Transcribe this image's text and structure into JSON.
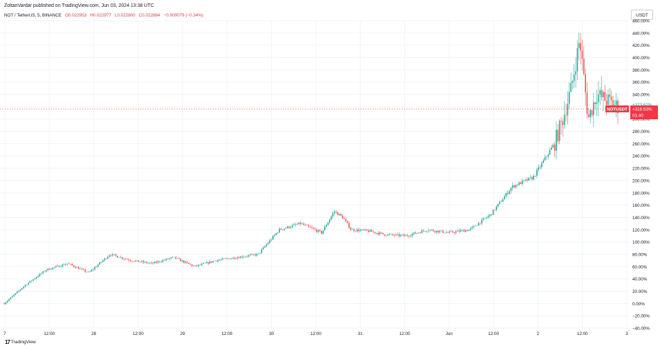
{
  "publisher_line": "ZoltanVardar published on TradingView.com, Jun 03, 2024 13:38 UTC",
  "legend": {
    "symbol": "NOT / TetherUS, 5, BINANCE",
    "open": "O0.022953",
    "high": "H0.022977",
    "low": "L0.022800",
    "close": "C0.022884",
    "change": "−0.000079 (−0.34%)"
  },
  "currency": "USDT",
  "footer": {
    "logo_glyph": "17",
    "logo_text": "TradingView"
  },
  "colors": {
    "up": "#26a69a",
    "down": "#ef5350",
    "price_line": "#ef5350",
    "price_badge": "#f23645",
    "marker_label": "#ffffff"
  },
  "chart_data": {
    "type": "line",
    "style": "candlestick",
    "y_axis_unit": "%",
    "ylim": [
      -40,
      460
    ],
    "y_ticks": [
      "460.00%",
      "440.00%",
      "420.00%",
      "400.00%",
      "380.00%",
      "360.00%",
      "340.00%",
      "320.00%",
      "300.00%",
      "280.00%",
      "260.00%",
      "240.00%",
      "220.00%",
      "200.00%",
      "180.00%",
      "160.00%",
      "140.00%",
      "120.00%",
      "100.00%",
      "80.00%",
      "60.00%",
      "40.00%",
      "20.00%",
      "0.00%",
      "−20.00%",
      "−40.00%"
    ],
    "x_ticks": [
      "7",
      "12:00",
      "28",
      "12:00",
      "29",
      "12:00",
      "30",
      "12:00",
      "31",
      "12:00",
      "Jun",
      "12:00",
      "2",
      "12:00",
      "3"
    ],
    "grid": true,
    "series": [
      {
        "x": [
          0,
          0.5,
          1,
          1.5,
          2,
          2.5,
          3,
          3.5,
          4,
          4.5,
          5,
          5.5,
          6,
          6.5,
          7,
          7.5,
          7.8,
          8,
          8.2,
          8.6,
          9,
          9.5,
          10,
          10.5,
          11,
          11.5,
          12,
          12.5,
          13,
          13.2,
          13.4,
          13.6,
          13.8,
          14,
          14.5
        ],
        "y": [
          0,
          30,
          55,
          65,
          50,
          80,
          70,
          65,
          75,
          60,
          70,
          75,
          80,
          120,
          130,
          115,
          150,
          140,
          120,
          118,
          112,
          110,
          120,
          115,
          120,
          145,
          190,
          205,
          260,
          300,
          350,
          430,
          300,
          340,
          320
        ]
      }
    ],
    "markers": [
      {
        "label": "+323.62%",
        "value": 323.62
      },
      {
        "label": "NOTUSDT",
        "value": 316.53
      },
      {
        "label": "+316.53%",
        "value": 316.53
      },
      {
        "label": "01:40",
        "value": 316.53
      }
    ]
  }
}
